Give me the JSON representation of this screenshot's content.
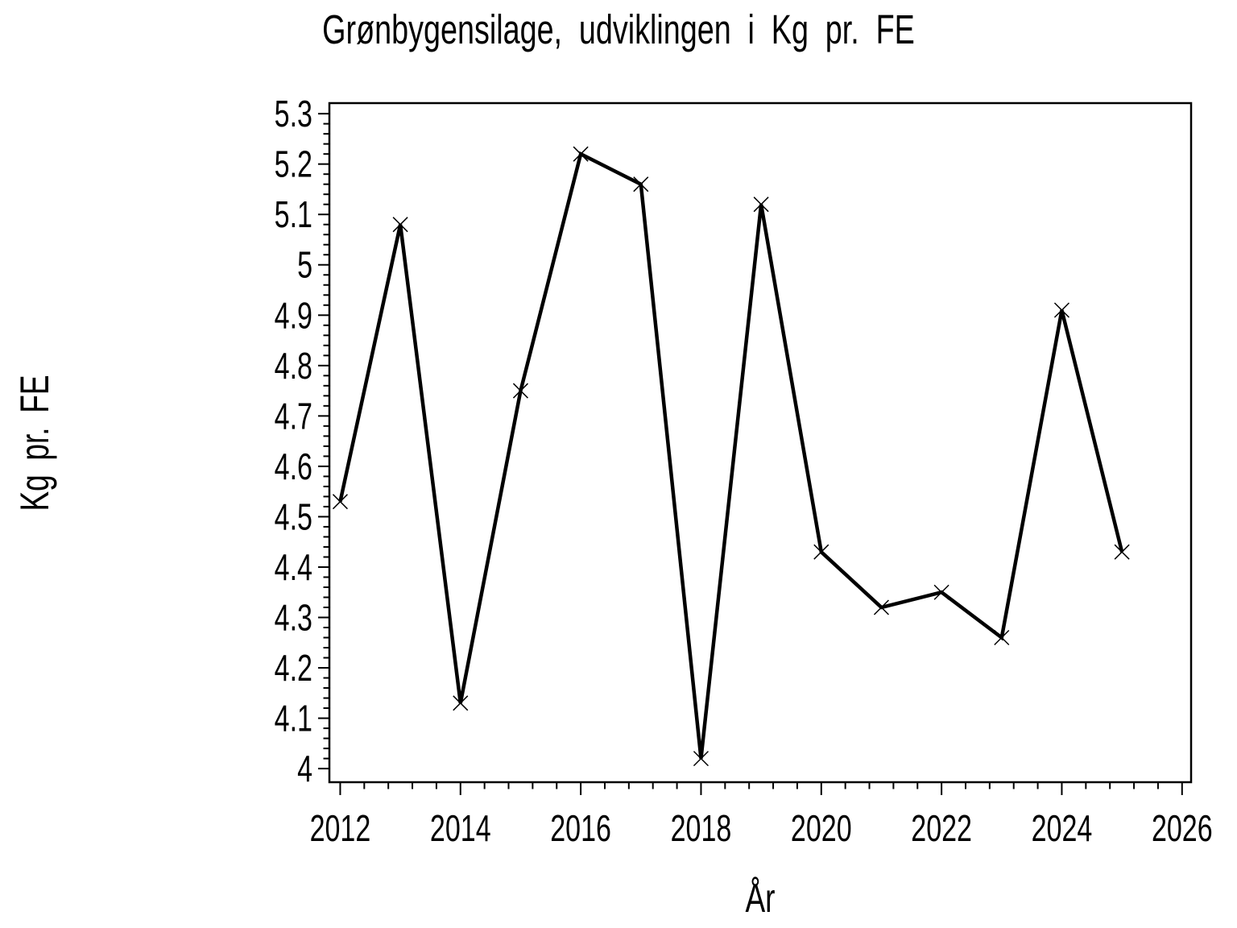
{
  "chart_data": {
    "type": "line",
    "title": "Grønbygensilage, udviklingen i Kg pr. FE",
    "xlabel": "År",
    "ylabel": "Kg pr. FE",
    "x": [
      2012,
      2013,
      2014,
      2015,
      2016,
      2017,
      2018,
      2019,
      2020,
      2021,
      2022,
      2023,
      2024,
      2025
    ],
    "values": [
      4.53,
      5.08,
      4.13,
      4.75,
      5.22,
      5.16,
      4.02,
      5.12,
      4.43,
      4.32,
      4.35,
      4.26,
      4.91,
      4.43
    ],
    "series": [
      {
        "name": "Kg pr. FE",
        "values": [
          4.53,
          5.08,
          4.13,
          4.75,
          5.22,
          5.16,
          4.02,
          5.12,
          4.43,
          4.32,
          4.35,
          4.26,
          4.91,
          4.43
        ]
      }
    ],
    "marker": "x",
    "line_color": "#000000",
    "marker_color": "#000000",
    "background_color": "#ffffff",
    "grid": false,
    "legend": "none",
    "frame": "box",
    "xlim": [
      2011.82,
      2026.15
    ],
    "ylim": [
      3.973,
      5.321
    ],
    "x_ticks": [
      2012,
      2014,
      2016,
      2018,
      2020,
      2022,
      2024,
      2026
    ],
    "x_tick_labels": [
      "2012",
      "2014",
      "2016",
      "2018",
      "2020",
      "2022",
      "2024",
      "2026"
    ],
    "x_minor_step": 0.4,
    "y_ticks": [
      4.0,
      4.1,
      4.2,
      4.3,
      4.4,
      4.5,
      4.6,
      4.7,
      4.8,
      4.9,
      5.0,
      5.1,
      5.2,
      5.3
    ],
    "y_tick_labels": [
      "4",
      "4.1",
      "4.2",
      "4.3",
      "4.4",
      "4.5",
      "4.6",
      "4.7",
      "4.8",
      "4.9",
      "5",
      "5.1",
      "5.2",
      "5.3"
    ],
    "y_minor_step": 0.02
  }
}
